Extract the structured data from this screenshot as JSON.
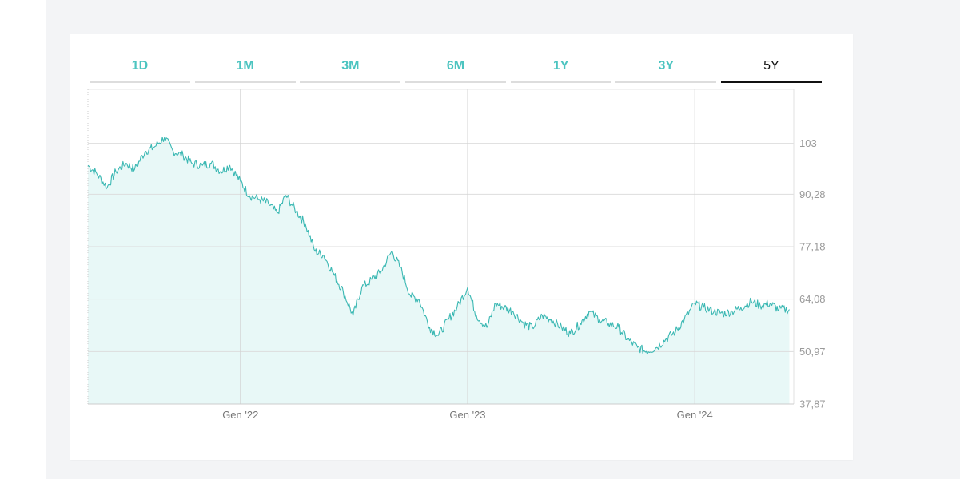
{
  "tabs": [
    {
      "label": "1D",
      "active": false
    },
    {
      "label": "1M",
      "active": false
    },
    {
      "label": "3M",
      "active": false
    },
    {
      "label": "6M",
      "active": false
    },
    {
      "label": "1Y",
      "active": false
    },
    {
      "label": "3Y",
      "active": false
    },
    {
      "label": "5Y",
      "active": true
    }
  ],
  "colors": {
    "line": "#3bb8b3",
    "fill": "#e8f8f7",
    "tab_inactive": "#4cc4c0",
    "tab_active": "#111111"
  },
  "chart_data": {
    "type": "area",
    "title": "",
    "xlabel": "",
    "ylabel": "",
    "ylim": [
      37.87,
      116.5
    ],
    "xlim": [
      "2021-05-01",
      "2024-06-08"
    ],
    "y_ticks": [
      "103",
      "90,28",
      "77,18",
      "64,08",
      "50,97",
      "37,87"
    ],
    "y_tick_values": [
      103,
      90.28,
      77.18,
      64.08,
      50.97,
      37.87
    ],
    "x_ticks": [
      {
        "label": "Gen '22",
        "date": "2022-01-01"
      },
      {
        "label": "Gen '23",
        "date": "2023-01-01"
      },
      {
        "label": "Gen '24",
        "date": "2024-01-01"
      }
    ],
    "grid": true,
    "series": [
      {
        "x": [
          "2021-05-01",
          "2021-05-15",
          "2021-06-01",
          "2021-06-15",
          "2021-07-01",
          "2021-07-15",
          "2021-08-01",
          "2021-08-15",
          "2021-09-01",
          "2021-09-15",
          "2021-10-01",
          "2021-10-15",
          "2021-11-01",
          "2021-11-15",
          "2021-12-01",
          "2021-12-15",
          "2022-01-01",
          "2022-01-15",
          "2022-02-01",
          "2022-02-15",
          "2022-03-01",
          "2022-03-15",
          "2022-04-01",
          "2022-04-15",
          "2022-05-01",
          "2022-05-15",
          "2022-06-01",
          "2022-06-15",
          "2022-07-01",
          "2022-07-15",
          "2022-08-01",
          "2022-08-15",
          "2022-09-01",
          "2022-09-15",
          "2022-10-01",
          "2022-10-15",
          "2022-11-01",
          "2022-11-15",
          "2022-12-01",
          "2022-12-15",
          "2023-01-01",
          "2023-01-15",
          "2023-02-01",
          "2023-02-15",
          "2023-03-01",
          "2023-03-15",
          "2023-04-01",
          "2023-04-15",
          "2023-05-01",
          "2023-05-15",
          "2023-06-01",
          "2023-06-15",
          "2023-07-01",
          "2023-07-15",
          "2023-08-01",
          "2023-08-15",
          "2023-09-01",
          "2023-09-15",
          "2023-10-01",
          "2023-10-15",
          "2023-11-01",
          "2023-11-15",
          "2023-12-01",
          "2023-12-15",
          "2024-01-01",
          "2024-01-15",
          "2024-02-01",
          "2024-02-15",
          "2024-03-01",
          "2024-03-15",
          "2024-04-01",
          "2024-04-15",
          "2024-05-01",
          "2024-05-15",
          "2024-06-01"
        ],
        "values": [
          97.5,
          95.5,
          92,
          96,
          98,
          96.5,
          101,
          102,
          104.5,
          101,
          100,
          98,
          97.5,
          98,
          96,
          97.5,
          93.5,
          90,
          89,
          88,
          85.5,
          90,
          86,
          83,
          76,
          75,
          70,
          66,
          60,
          67,
          69,
          71,
          76,
          72,
          65,
          64,
          57,
          55,
          59,
          62,
          67,
          60,
          57,
          63,
          62,
          61,
          58,
          57,
          60,
          59,
          57,
          55.5,
          58,
          61,
          59,
          58,
          57,
          54,
          52,
          51,
          52,
          54,
          56,
          59,
          63,
          62,
          61,
          60.5,
          61,
          62,
          63.5,
          62.5,
          63,
          61.5,
          61.5
        ]
      }
    ]
  }
}
